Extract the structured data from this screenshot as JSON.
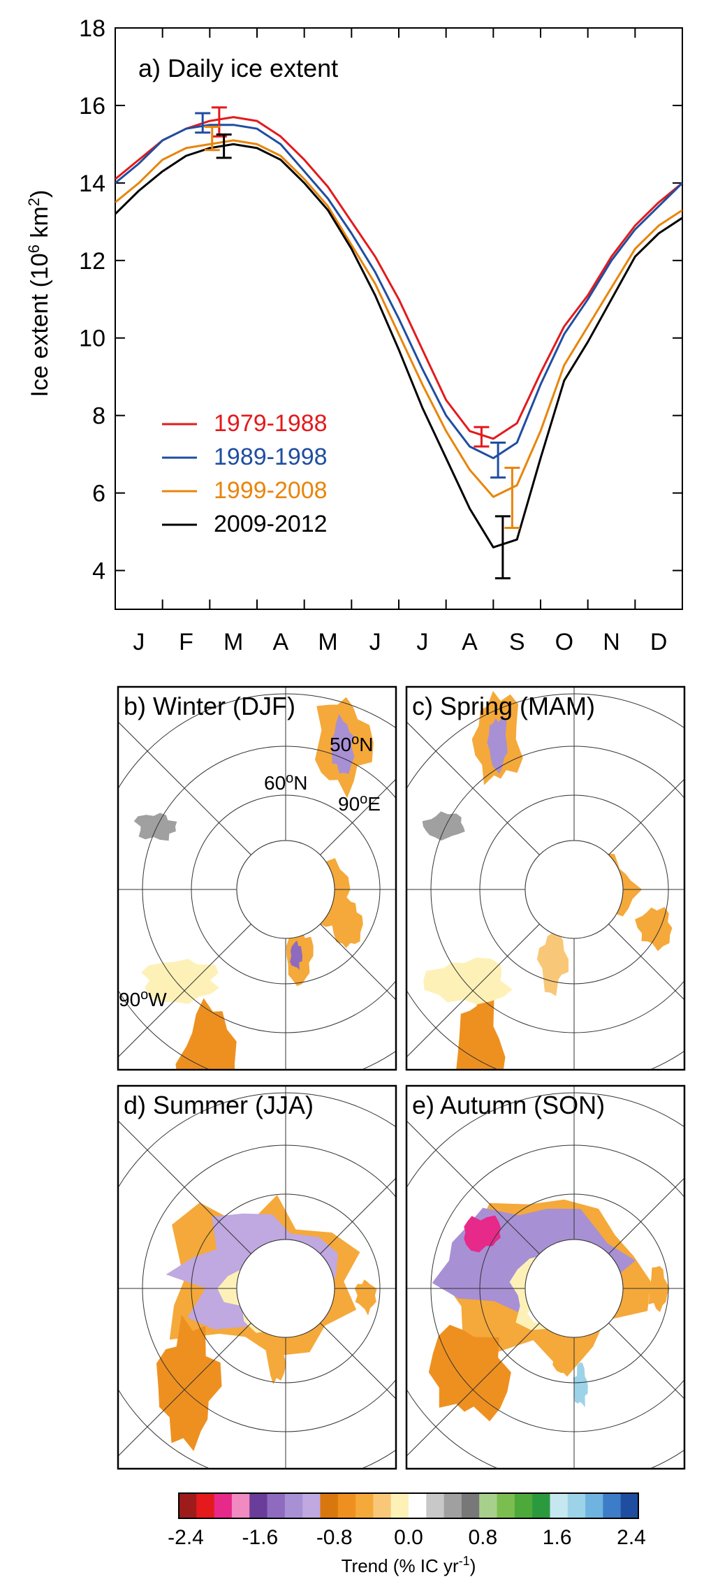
{
  "chart_data": [
    {
      "type": "line",
      "title": "a) Daily ice extent",
      "ylabel": "Ice extent (10",
      "ylabel_sup": "6",
      "ylabel_unit": " km",
      "ylabel_unit_sup": "2",
      "ylabel_close": ")",
      "ylim": [
        3,
        18
      ],
      "yticks": [
        4,
        6,
        8,
        10,
        12,
        14,
        16,
        18
      ],
      "months": [
        "J",
        "F",
        "M",
        "A",
        "M",
        "J",
        "J",
        "A",
        "S",
        "O",
        "N",
        "D"
      ],
      "x": [
        0,
        0.5,
        1,
        1.5,
        2,
        2.5,
        3,
        3.5,
        4,
        4.5,
        5,
        5.5,
        6,
        6.5,
        7,
        7.5,
        8,
        8.5,
        9,
        9.5,
        10,
        10.5,
        11,
        11.5,
        12
      ],
      "series": [
        {
          "name": "1979-1988",
          "color": "#e31a1c",
          "values": [
            14.1,
            14.6,
            15.1,
            15.4,
            15.6,
            15.7,
            15.6,
            15.2,
            14.6,
            13.9,
            13.0,
            12.1,
            11.0,
            9.7,
            8.4,
            7.6,
            7.4,
            7.8,
            9.1,
            10.3,
            11.1,
            12.1,
            12.9,
            13.5,
            14.0
          ]
        },
        {
          "name": "1989-1998",
          "color": "#1f4ea1",
          "values": [
            14.0,
            14.5,
            15.1,
            15.4,
            15.5,
            15.5,
            15.4,
            15.0,
            14.3,
            13.6,
            12.7,
            11.7,
            10.5,
            9.2,
            8.0,
            7.2,
            6.9,
            7.3,
            8.8,
            10.1,
            11.0,
            12.0,
            12.8,
            13.4,
            14.0
          ]
        },
        {
          "name": "1999-2008",
          "color": "#e8850c",
          "values": [
            13.5,
            14.0,
            14.6,
            14.9,
            15.0,
            15.1,
            15.0,
            14.7,
            14.1,
            13.4,
            12.4,
            11.4,
            10.1,
            8.8,
            7.6,
            6.6,
            5.9,
            6.2,
            7.6,
            9.3,
            10.3,
            11.3,
            12.3,
            12.9,
            13.3
          ]
        },
        {
          "name": "2009-2012",
          "color": "#000000",
          "values": [
            13.2,
            13.8,
            14.3,
            14.7,
            14.9,
            15.0,
            14.9,
            14.6,
            14.0,
            13.3,
            12.3,
            11.1,
            9.7,
            8.2,
            6.9,
            5.6,
            4.6,
            4.8,
            6.9,
            8.9,
            9.9,
            11.0,
            12.1,
            12.7,
            13.1
          ]
        }
      ],
      "error_bars": [
        {
          "series": "1979-1988",
          "x": 2.2,
          "y": 15.6,
          "low": 15.2,
          "high": 15.95
        },
        {
          "series": "1989-1998",
          "x": 1.85,
          "y": 15.55,
          "low": 15.3,
          "high": 15.8
        },
        {
          "series": "1999-2008",
          "x": 2.05,
          "y": 15.15,
          "low": 14.85,
          "high": 15.45
        },
        {
          "series": "2009-2012",
          "x": 2.3,
          "y": 14.95,
          "low": 14.65,
          "high": 15.25
        },
        {
          "series": "1979-1988",
          "x": 7.75,
          "y": 7.45,
          "low": 7.2,
          "high": 7.7
        },
        {
          "series": "1989-1998",
          "x": 8.1,
          "y": 6.9,
          "low": 6.4,
          "high": 7.3
        },
        {
          "series": "1999-2008",
          "x": 8.4,
          "y": 5.9,
          "low": 5.1,
          "high": 6.65
        },
        {
          "series": "2009-2012",
          "x": 8.2,
          "y": 4.6,
          "low": 3.8,
          "high": 5.4
        }
      ],
      "legend_placement": "bottom-left"
    },
    {
      "type": "heatmap",
      "panels": [
        {
          "title": "b) Winter (DJF)",
          "labels": [
            "50",
            "60",
            "90",
            "90"
          ]
        },
        {
          "title": "c) Spring (MAM)"
        },
        {
          "title": "d) Summer (JJA)"
        },
        {
          "title": "e) Autumn (SON)"
        }
      ],
      "map_labels": {
        "lat50": "50",
        "lat50_sup": "o",
        "lat50_suffix": "N",
        "lat60": "60",
        "lat60_sup": "o",
        "lat60_suffix": "N",
        "lon90e": "90",
        "lon90e_sup": "o",
        "lon90e_suffix": "E",
        "lon90w": "90",
        "lon90w_sup": "o",
        "lon90w_suffix": "W"
      },
      "colorbar": {
        "ticks": [
          "-2.4",
          "-1.6",
          "-0.8",
          "0.0",
          "0.8",
          "1.6",
          "2.4"
        ],
        "title": "Trend (% IC yr",
        "title_sup": "-1",
        "title_close": ")",
        "colors": [
          "#9e1b1b",
          "#e41a1c",
          "#e7298a",
          "#f08ac0",
          "#6a3d9a",
          "#8e6bbf",
          "#a890d4",
          "#c0a8e0",
          "#d9770f",
          "#ee9020",
          "#f5a93a",
          "#f8c878",
          "#fdf1b8",
          "#ffffff",
          "#c8c8c8",
          "#a0a0a0",
          "#787878",
          "#a8d08d",
          "#7cbd50",
          "#4daa3a",
          "#2b9a3f",
          "#c6e6f0",
          "#9dd3e8",
          "#6fb4e0",
          "#3d7cc6",
          "#1f4ea1"
        ]
      }
    }
  ]
}
